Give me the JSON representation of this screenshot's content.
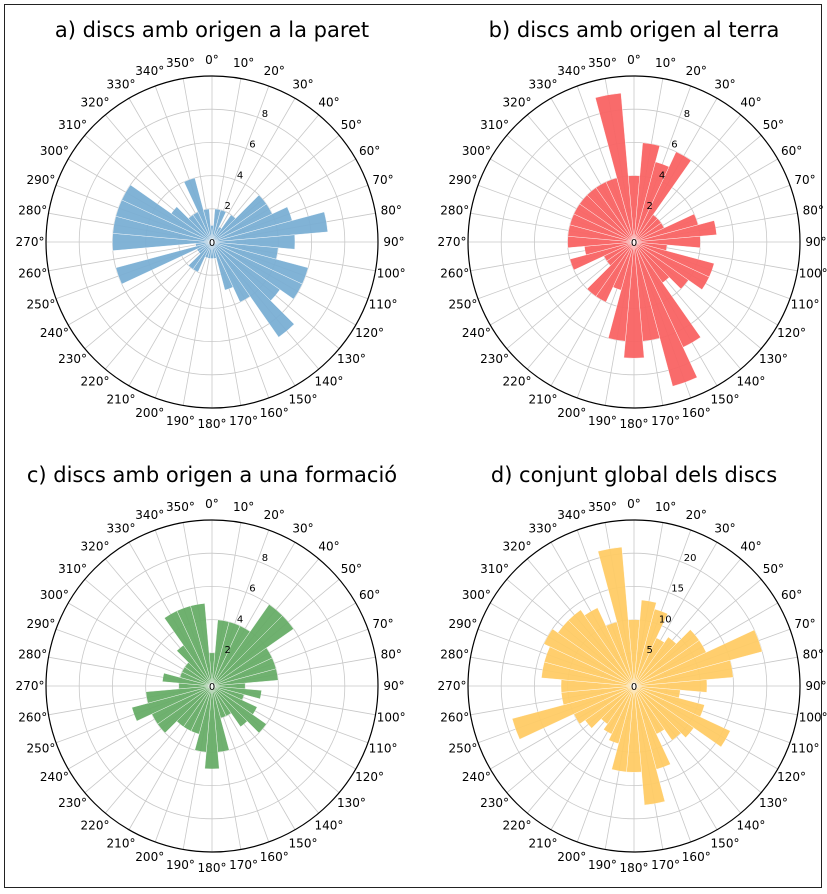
{
  "chart_data": [
    {
      "type": "polar-bar",
      "title": "a) discs amb origen a la paret",
      "color": "#7bafd4",
      "angle_unit": "degrees",
      "bin_width": 10,
      "angle_ticks": [
        "0°",
        "10°",
        "20°",
        "30°",
        "40°",
        "50°",
        "60°",
        "70°",
        "80°",
        "90°",
        "100°",
        "110°",
        "120°",
        "130°",
        "140°",
        "150°",
        "160°",
        "170°",
        "180°",
        "190°",
        "200°",
        "210°",
        "220°",
        "230°",
        "240°",
        "250°",
        "260°",
        "270°",
        "280°",
        "290°",
        "300°",
        "310°",
        "320°",
        "330°",
        "340°",
        "350°"
      ],
      "r_ticks": [
        0,
        2,
        4,
        6,
        8
      ],
      "rlim": [
        0,
        10
      ],
      "bins_deg": [
        0,
        10,
        20,
        30,
        40,
        50,
        60,
        70,
        80,
        90,
        100,
        110,
        120,
        130,
        140,
        150,
        160,
        170,
        180,
        190,
        200,
        210,
        220,
        230,
        240,
        250,
        260,
        270,
        280,
        290,
        300,
        310,
        320,
        330,
        340,
        350
      ],
      "values": [
        1,
        2,
        2,
        1,
        2,
        4,
        4,
        5,
        7,
        5,
        4,
        6,
        6,
        5,
        7,
        4,
        3,
        1,
        1,
        1,
        1,
        2,
        2,
        1,
        1,
        6,
        1,
        6,
        6,
        6,
        6,
        3,
        2,
        2,
        4,
        2
      ]
    },
    {
      "type": "polar-bar",
      "title": "b) discs amb origen al terra",
      "color": "#f96464",
      "angle_unit": "degrees",
      "bin_width": 10,
      "angle_ticks": [
        "0°",
        "10°",
        "20°",
        "30°",
        "40°",
        "50°",
        "60°",
        "70°",
        "80°",
        "90°",
        "100°",
        "110°",
        "120°",
        "130°",
        "140°",
        "150°",
        "160°",
        "170°",
        "180°",
        "190°",
        "200°",
        "210°",
        "220°",
        "230°",
        "240°",
        "250°",
        "260°",
        "270°",
        "280°",
        "290°",
        "300°",
        "310°",
        "320°",
        "330°",
        "340°",
        "350°"
      ],
      "r_ticks": [
        0,
        2,
        4,
        6,
        8
      ],
      "rlim": [
        0,
        10
      ],
      "bins_deg": [
        0,
        10,
        20,
        30,
        40,
        50,
        60,
        70,
        80,
        90,
        100,
        110,
        120,
        130,
        140,
        150,
        160,
        170,
        180,
        190,
        200,
        210,
        220,
        230,
        240,
        250,
        260,
        270,
        280,
        290,
        300,
        310,
        320,
        330,
        340,
        350
      ],
      "values": [
        4,
        6,
        5,
        6,
        2,
        2,
        2,
        4,
        5,
        4,
        2,
        5,
        5,
        4,
        3,
        7,
        9,
        6,
        7,
        6,
        3,
        4,
        4,
        2,
        2,
        4,
        3,
        4,
        4,
        4,
        4,
        4,
        4,
        4,
        4,
        9
      ]
    },
    {
      "type": "polar-bar",
      "title": "c) discs amb origen a una formació",
      "color": "#68ad68",
      "angle_unit": "degrees",
      "bin_width": 10,
      "angle_ticks": [
        "0°",
        "10°",
        "20°",
        "30°",
        "40°",
        "50°",
        "60°",
        "70°",
        "80°",
        "90°",
        "100°",
        "110°",
        "120°",
        "130°",
        "140°",
        "150°",
        "160°",
        "170°",
        "180°",
        "190°",
        "200°",
        "210°",
        "220°",
        "230°",
        "240°",
        "250°",
        "260°",
        "270°",
        "280°",
        "290°",
        "300°",
        "310°",
        "320°",
        "330°",
        "340°",
        "350°"
      ],
      "r_ticks": [
        0,
        2,
        4,
        6,
        8
      ],
      "rlim": [
        0,
        10
      ],
      "bins_deg": [
        0,
        10,
        20,
        30,
        40,
        50,
        60,
        70,
        80,
        90,
        100,
        110,
        120,
        130,
        140,
        150,
        160,
        170,
        180,
        190,
        200,
        210,
        220,
        230,
        240,
        250,
        260,
        270,
        280,
        290,
        300,
        310,
        320,
        330,
        340,
        350
      ],
      "values": [
        2,
        4,
        4,
        4,
        6,
        6,
        4,
        4,
        4,
        2,
        3,
        2,
        3,
        4,
        3,
        2,
        2,
        4,
        5,
        4,
        3,
        3,
        3,
        4,
        4,
        5,
        4,
        2,
        3,
        2,
        2,
        2,
        3,
        5,
        5,
        5
      ]
    },
    {
      "type": "polar-bar",
      "title": "d) conjunt global dels discs",
      "color": "#ffcc66",
      "angle_unit": "degrees",
      "bin_width": 10,
      "angle_ticks": [
        "0°",
        "10°",
        "20°",
        "30°",
        "40°",
        "50°",
        "60°",
        "70°",
        "80°",
        "90°",
        "100°",
        "110°",
        "120°",
        "130°",
        "140°",
        "150°",
        "160°",
        "170°",
        "180°",
        "190°",
        "200°",
        "210°",
        "220°",
        "230°",
        "240°",
        "250°",
        "260°",
        "270°",
        "280°",
        "290°",
        "300°",
        "310°",
        "320°",
        "330°",
        "340°",
        "350°"
      ],
      "r_ticks": [
        0,
        5,
        10,
        15,
        20
      ],
      "rlim": [
        0,
        25
      ],
      "bins_deg": [
        0,
        10,
        20,
        30,
        40,
        50,
        60,
        70,
        80,
        90,
        100,
        110,
        120,
        130,
        140,
        150,
        160,
        170,
        180,
        190,
        200,
        210,
        220,
        230,
        240,
        250,
        260,
        270,
        280,
        290,
        300,
        310,
        320,
        330,
        340,
        350
      ],
      "values": [
        10,
        13,
        12,
        8,
        9,
        12,
        12,
        20,
        15,
        11,
        7,
        11,
        16,
        11,
        10,
        8,
        13,
        18,
        13,
        13,
        9,
        8,
        7,
        9,
        10,
        19,
        11,
        11,
        14,
        14,
        15,
        14,
        14,
        13,
        10,
        21
      ]
    }
  ]
}
